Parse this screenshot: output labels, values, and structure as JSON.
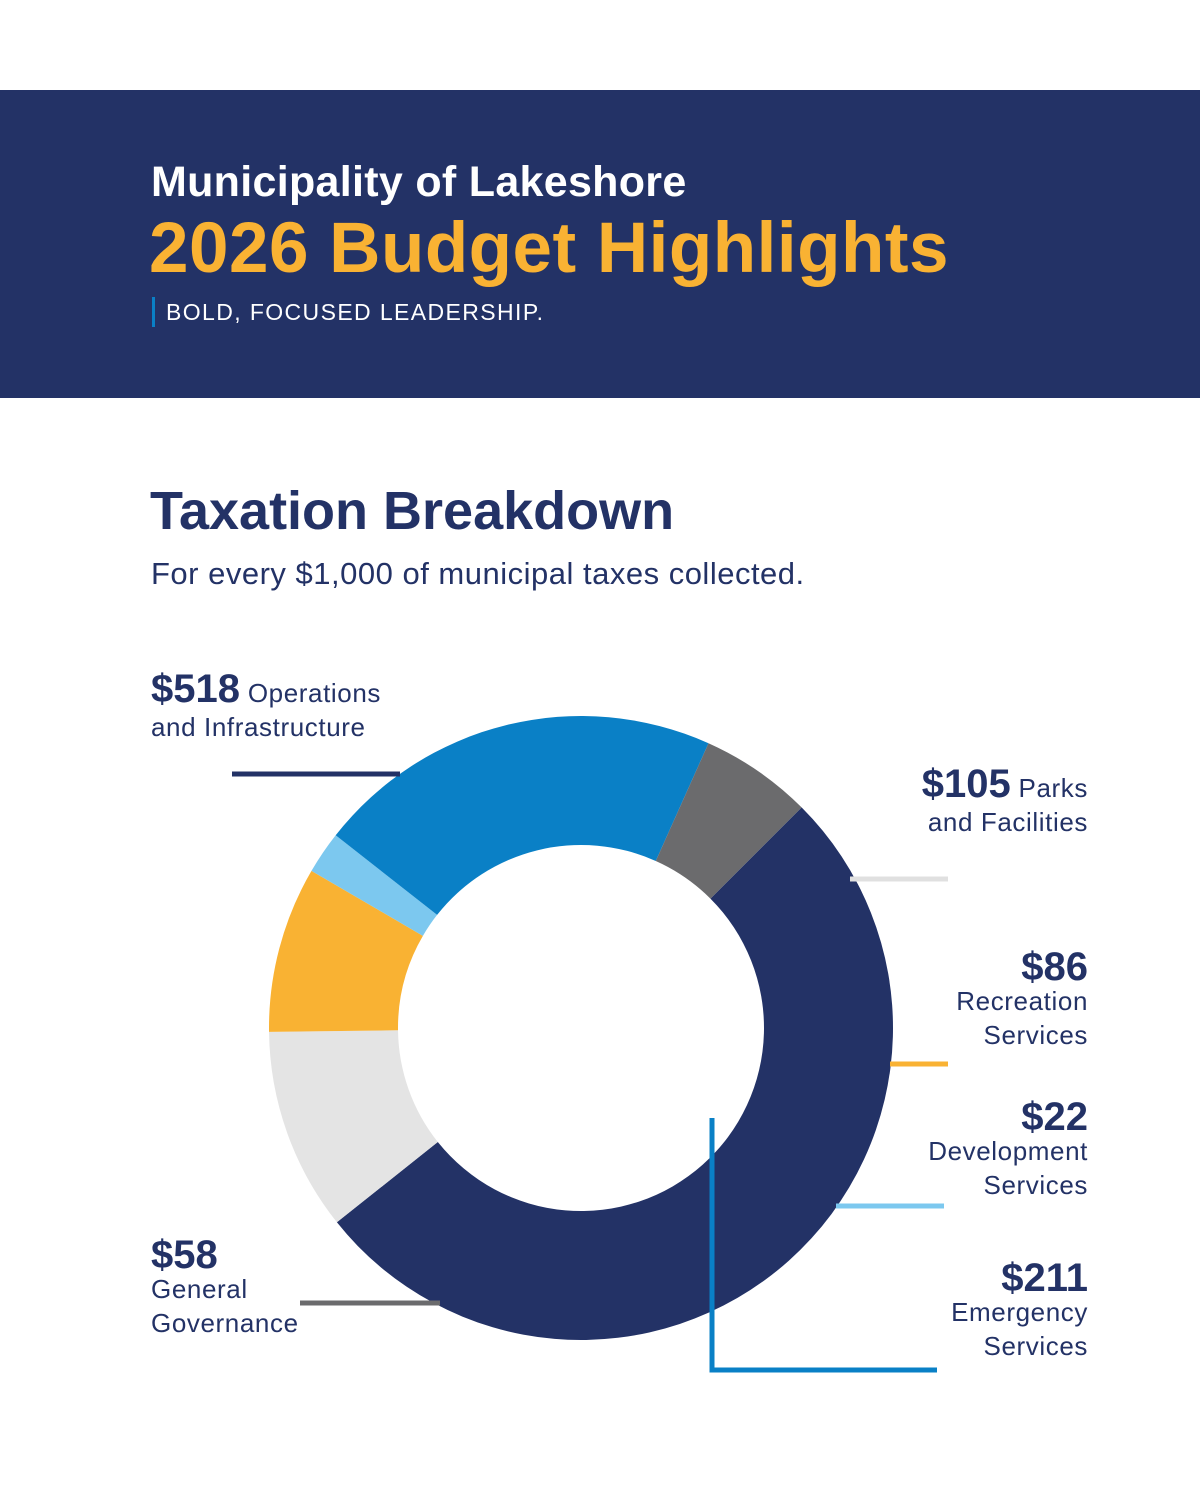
{
  "header": {
    "municipality": "Municipality of Lakeshore",
    "headline": "2026 Budget Highlights",
    "tagline": "BOLD, FOCUSED LEADERSHIP."
  },
  "section": {
    "title": "Taxation Breakdown",
    "subtitle": "For every $1,000 of municipal taxes collected."
  },
  "colors": {
    "navy": "#233266",
    "gold": "#f9b233",
    "accent_blue": "#0a80c6"
  },
  "chart_data": {
    "type": "pie",
    "style": "donut",
    "title": "Taxation Breakdown",
    "subtitle": "For every $1,000 of municipal taxes collected.",
    "total": 1000,
    "slices": [
      {
        "key": "operations",
        "amount": "$518",
        "line1": "Operations",
        "line2": "and Infrastructure",
        "value": 518,
        "color": "#233266"
      },
      {
        "key": "parks",
        "amount": "$105",
        "line1": "Parks",
        "line2": "and Facilities",
        "value": 105,
        "color": "#e4e4e4",
        "line_color": "#e0e0e0"
      },
      {
        "key": "recreation",
        "amount": "$86",
        "line1": "Recreation",
        "line2": "Services",
        "value": 86,
        "color": "#f9b233"
      },
      {
        "key": "development",
        "amount": "$22",
        "line1": "Development",
        "line2": "Services",
        "value": 22,
        "color": "#7cc8ef"
      },
      {
        "key": "emergency",
        "amount": "$211",
        "line1": "Emergency",
        "line2": "Services",
        "value": 211,
        "color": "#0a80c6"
      },
      {
        "key": "governance",
        "amount": "$58",
        "line1": "General",
        "line2": "Governance",
        "value": 58,
        "color": "#6b6b6d"
      }
    ]
  }
}
